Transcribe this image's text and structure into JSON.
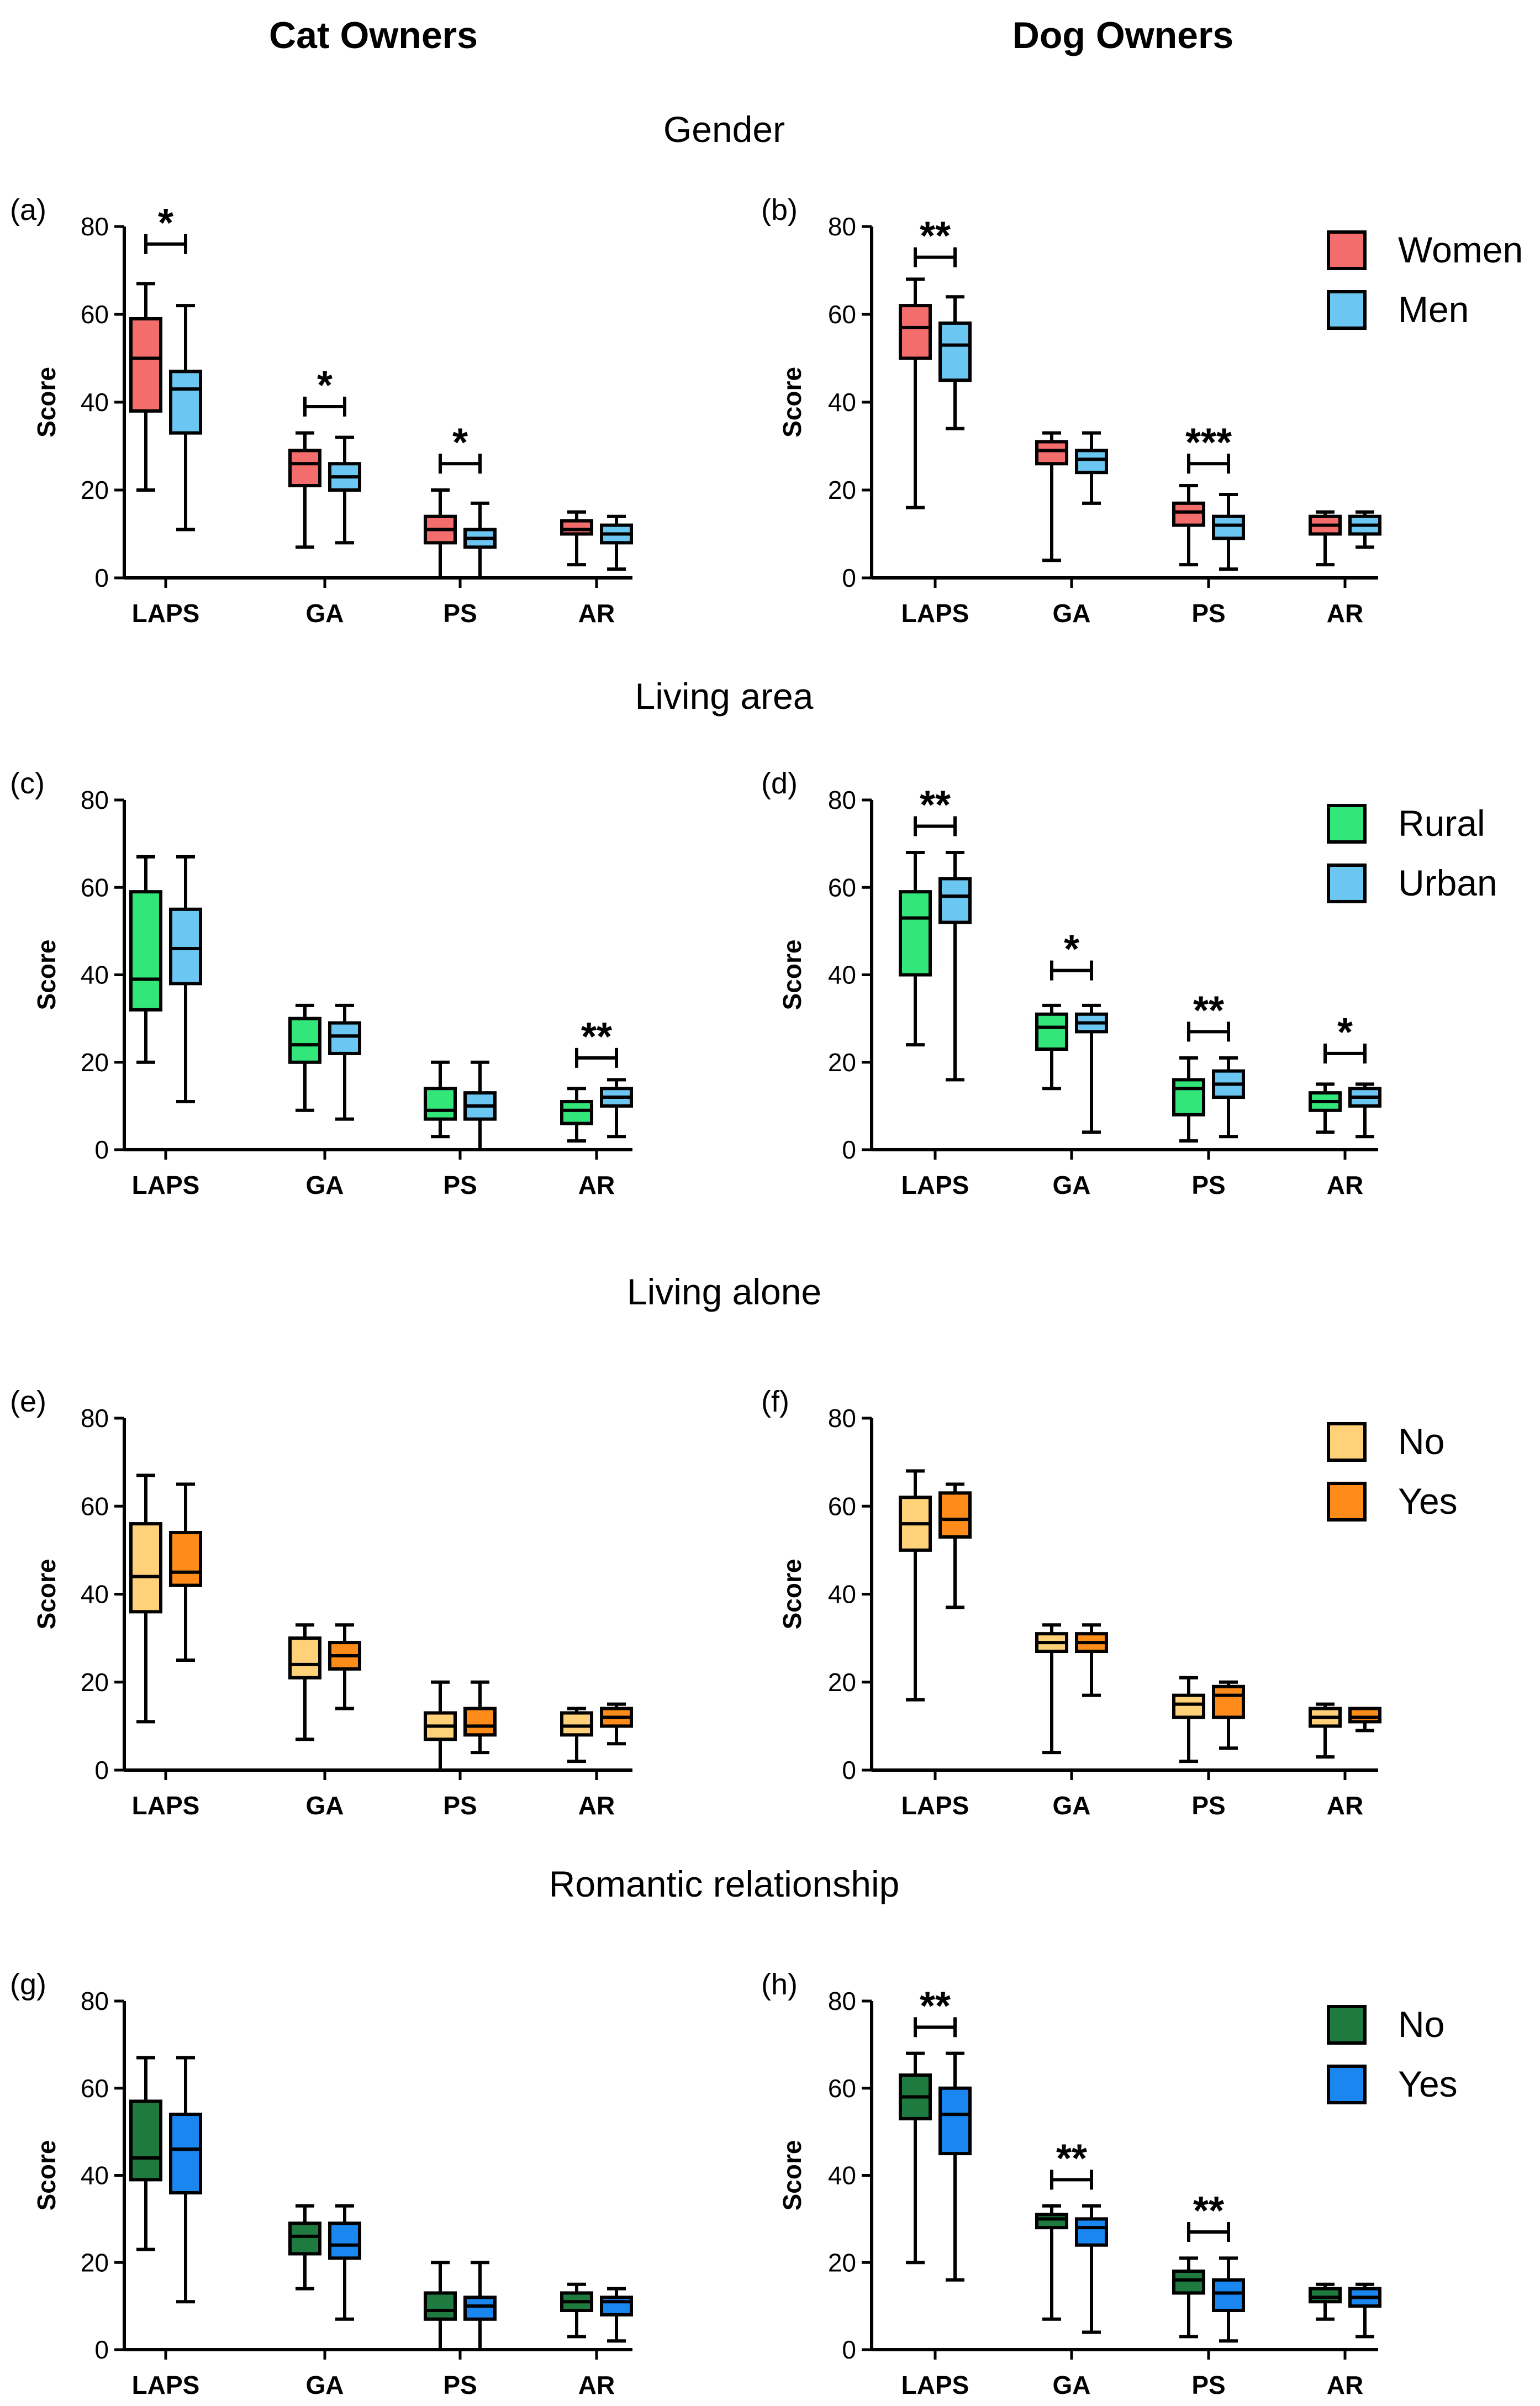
{
  "figure": {
    "column_titles": [
      "Cat Owners",
      "Dog Owners"
    ]
  },
  "chart_data": [
    {
      "type": "box",
      "id": "a",
      "panel_label": "(a)",
      "row_title": "Gender",
      "ylabel": "Score",
      "ylim": [
        0,
        80
      ],
      "yticks": [
        0,
        20,
        40,
        60,
        80
      ],
      "categories": [
        "LAPS",
        "GA",
        "PS",
        "AR"
      ],
      "series": [
        {
          "name": "Women",
          "color": "#f46d6d",
          "boxes": [
            [
              20,
              38,
              50,
              59,
              67
            ],
            [
              7,
              21,
              26,
              29,
              33
            ],
            [
              0,
              8,
              11,
              14,
              20
            ],
            [
              3,
              10,
              11,
              13,
              15
            ]
          ]
        },
        {
          "name": "Men",
          "color": "#6cc6f2",
          "boxes": [
            [
              11,
              33,
              43,
              47,
              62
            ],
            [
              8,
              20,
              23,
              26,
              32
            ],
            [
              0,
              7,
              9,
              11,
              17
            ],
            [
              2,
              8,
              10,
              12,
              14
            ]
          ]
        }
      ],
      "significance": [
        {
          "category": "LAPS",
          "label": "*",
          "y": 76
        },
        {
          "category": "GA",
          "label": "*",
          "y": 39
        },
        {
          "category": "PS",
          "label": "*",
          "y": 26
        }
      ]
    },
    {
      "type": "box",
      "id": "b",
      "panel_label": "(b)",
      "row_title": "",
      "ylabel": "Score",
      "ylim": [
        0,
        80
      ],
      "yticks": [
        0,
        20,
        40,
        60,
        80
      ],
      "categories": [
        "LAPS",
        "GA",
        "PS",
        "AR"
      ],
      "legend": [
        "Women",
        "Men"
      ],
      "series": [
        {
          "name": "Women",
          "color": "#f46d6d",
          "boxes": [
            [
              16,
              50,
              57,
              62,
              68
            ],
            [
              4,
              26,
              29,
              31,
              33
            ],
            [
              3,
              12,
              15,
              17,
              21
            ],
            [
              3,
              10,
              12,
              14,
              15
            ]
          ]
        },
        {
          "name": "Men",
          "color": "#6cc6f2",
          "boxes": [
            [
              34,
              45,
              53,
              58,
              64
            ],
            [
              17,
              24,
              27,
              29,
              33
            ],
            [
              2,
              9,
              12,
              14,
              19
            ],
            [
              7,
              10,
              12,
              14,
              15
            ]
          ]
        }
      ],
      "significance": [
        {
          "category": "LAPS",
          "label": "**",
          "y": 73
        },
        {
          "category": "PS",
          "label": "***",
          "y": 26
        }
      ]
    },
    {
      "type": "box",
      "id": "c",
      "panel_label": "(c)",
      "row_title": "Living area",
      "ylabel": "Score",
      "ylim": [
        0,
        80
      ],
      "yticks": [
        0,
        20,
        40,
        60,
        80
      ],
      "categories": [
        "LAPS",
        "GA",
        "PS",
        "AR"
      ],
      "series": [
        {
          "name": "Rural",
          "color": "#33e67a",
          "boxes": [
            [
              20,
              32,
              39,
              59,
              67
            ],
            [
              9,
              20,
              24,
              30,
              33
            ],
            [
              3,
              7,
              9,
              14,
              20
            ],
            [
              2,
              6,
              9,
              11,
              14
            ]
          ]
        },
        {
          "name": "Urban",
          "color": "#6cc6f2",
          "boxes": [
            [
              11,
              38,
              46,
              55,
              67
            ],
            [
              7,
              22,
              26,
              29,
              33
            ],
            [
              0,
              7,
              10,
              13,
              20
            ],
            [
              3,
              10,
              12,
              14,
              16
            ]
          ]
        }
      ],
      "significance": [
        {
          "category": "AR",
          "label": "**",
          "y": 21
        }
      ]
    },
    {
      "type": "box",
      "id": "d",
      "panel_label": "(d)",
      "row_title": "",
      "ylabel": "Score",
      "ylim": [
        0,
        80
      ],
      "yticks": [
        0,
        20,
        40,
        60,
        80
      ],
      "categories": [
        "LAPS",
        "GA",
        "PS",
        "AR"
      ],
      "legend": [
        "Rural",
        "Urban"
      ],
      "series": [
        {
          "name": "Rural",
          "color": "#33e67a",
          "boxes": [
            [
              24,
              40,
              53,
              59,
              68
            ],
            [
              14,
              23,
              28,
              31,
              33
            ],
            [
              2,
              8,
              14,
              16,
              21
            ],
            [
              4,
              9,
              11,
              13,
              15
            ]
          ]
        },
        {
          "name": "Urban",
          "color": "#6cc6f2",
          "boxes": [
            [
              16,
              52,
              58,
              62,
              68
            ],
            [
              4,
              27,
              29,
              31,
              33
            ],
            [
              3,
              12,
              15,
              18,
              21
            ],
            [
              3,
              10,
              12,
              14,
              15
            ]
          ]
        }
      ],
      "significance": [
        {
          "category": "LAPS",
          "label": "**",
          "y": 74
        },
        {
          "category": "GA",
          "label": "*",
          "y": 41
        },
        {
          "category": "PS",
          "label": "**",
          "y": 27
        },
        {
          "category": "AR",
          "label": "*",
          "y": 22
        }
      ]
    },
    {
      "type": "box",
      "id": "e",
      "panel_label": "(e)",
      "row_title": "Living alone",
      "ylabel": "Score",
      "ylim": [
        0,
        80
      ],
      "yticks": [
        0,
        20,
        40,
        60,
        80
      ],
      "categories": [
        "LAPS",
        "GA",
        "PS",
        "AR"
      ],
      "series": [
        {
          "name": "No",
          "color": "#ffd27a",
          "boxes": [
            [
              11,
              36,
              44,
              56,
              67
            ],
            [
              7,
              21,
              24,
              30,
              33
            ],
            [
              0,
              7,
              10,
              13,
              20
            ],
            [
              2,
              8,
              10,
              13,
              14
            ]
          ]
        },
        {
          "name": "Yes",
          "color": "#ff8c1a",
          "boxes": [
            [
              25,
              42,
              45,
              54,
              65
            ],
            [
              14,
              23,
              26,
              29,
              33
            ],
            [
              4,
              8,
              10,
              14,
              20
            ],
            [
              6,
              10,
              12,
              14,
              15
            ]
          ]
        }
      ],
      "significance": []
    },
    {
      "type": "box",
      "id": "f",
      "panel_label": "(f)",
      "row_title": "",
      "ylabel": "Score",
      "ylim": [
        0,
        80
      ],
      "yticks": [
        0,
        20,
        40,
        60,
        80
      ],
      "categories": [
        "LAPS",
        "GA",
        "PS",
        "AR"
      ],
      "legend": [
        "No",
        "Yes"
      ],
      "series": [
        {
          "name": "No",
          "color": "#ffd27a",
          "boxes": [
            [
              16,
              50,
              56,
              62,
              68
            ],
            [
              4,
              27,
              29,
              31,
              33
            ],
            [
              2,
              12,
              15,
              17,
              21
            ],
            [
              3,
              10,
              12,
              14,
              15
            ]
          ]
        },
        {
          "name": "Yes",
          "color": "#ff8c1a",
          "boxes": [
            [
              37,
              53,
              57,
              63,
              65
            ],
            [
              17,
              27,
              29,
              31,
              33
            ],
            [
              5,
              12,
              17,
              19,
              20
            ],
            [
              9,
              11,
              12,
              14,
              14
            ]
          ]
        }
      ],
      "significance": []
    },
    {
      "type": "box",
      "id": "g",
      "panel_label": "(g)",
      "row_title": "Romantic relationship",
      "ylabel": "Score",
      "ylim": [
        0,
        80
      ],
      "yticks": [
        0,
        20,
        40,
        60,
        80
      ],
      "categories": [
        "LAPS",
        "GA",
        "PS",
        "AR"
      ],
      "series": [
        {
          "name": "No",
          "color": "#1f7a3f",
          "boxes": [
            [
              23,
              39,
              44,
              57,
              67
            ],
            [
              14,
              22,
              26,
              29,
              33
            ],
            [
              0,
              7,
              9,
              13,
              20
            ],
            [
              3,
              9,
              11,
              13,
              15
            ]
          ]
        },
        {
          "name": "Yes",
          "color": "#1a86f0",
          "boxes": [
            [
              11,
              36,
              46,
              54,
              67
            ],
            [
              7,
              21,
              24,
              29,
              33
            ],
            [
              0,
              7,
              10,
              12,
              20
            ],
            [
              2,
              8,
              11,
              12,
              14
            ]
          ]
        }
      ],
      "significance": []
    },
    {
      "type": "box",
      "id": "h",
      "panel_label": "(h)",
      "row_title": "",
      "ylabel": "Score",
      "ylim": [
        0,
        80
      ],
      "yticks": [
        0,
        20,
        40,
        60,
        80
      ],
      "categories": [
        "LAPS",
        "GA",
        "PS",
        "AR"
      ],
      "legend": [
        "No",
        "Yes"
      ],
      "series": [
        {
          "name": "No",
          "color": "#1f7a3f",
          "boxes": [
            [
              20,
              53,
              58,
              63,
              68
            ],
            [
              7,
              28,
              30,
              31,
              33
            ],
            [
              3,
              13,
              16,
              18,
              21
            ],
            [
              7,
              11,
              12,
              14,
              15
            ]
          ]
        },
        {
          "name": "Yes",
          "color": "#1a86f0",
          "boxes": [
            [
              16,
              45,
              54,
              60,
              68
            ],
            [
              4,
              24,
              28,
              30,
              33
            ],
            [
              2,
              9,
              13,
              16,
              21
            ],
            [
              3,
              10,
              12,
              14,
              15
            ]
          ]
        }
      ],
      "significance": [
        {
          "category": "LAPS",
          "label": "**",
          "y": 74
        },
        {
          "category": "GA",
          "label": "**",
          "y": 39
        },
        {
          "category": "PS",
          "label": "**",
          "y": 27
        }
      ]
    }
  ]
}
